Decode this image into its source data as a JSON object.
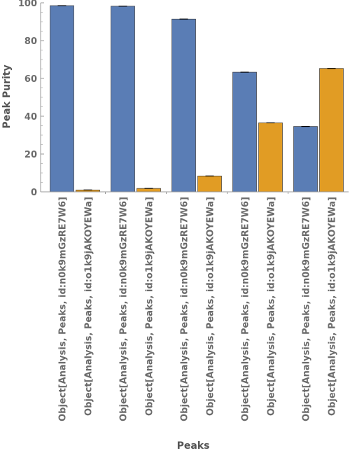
{
  "chart_data": {
    "type": "bar",
    "xlabel": "Peaks",
    "ylabel": "Peak Purity",
    "ylim": [
      0,
      100
    ],
    "yticks": [
      0,
      20,
      40,
      60,
      80,
      100
    ],
    "grid": false,
    "series_colors": [
      "#5a7db5",
      "#e19c24"
    ],
    "groups": [
      {
        "bars": [
          {
            "label": "Object[Analysis, Peaks, id:n0k9mGzRE7W6]",
            "value": 98.5
          },
          {
            "label": "Object[Analysis, Peaks, id:o1k9jAKOYEWa]",
            "value": 1.0
          }
        ]
      },
      {
        "bars": [
          {
            "label": "Object[Analysis, Peaks, id:n0k9mGzRE7W6]",
            "value": 98.2
          },
          {
            "label": "Object[Analysis, Peaks, id:o1k9jAKOYEWa]",
            "value": 1.8
          }
        ]
      },
      {
        "bars": [
          {
            "label": "Object[Analysis, Peaks, id:n0k9mGzRE7W6]",
            "value": 91.4
          },
          {
            "label": "Object[Analysis, Peaks, id:o1k9jAKOYEWa]",
            "value": 8.4
          }
        ]
      },
      {
        "bars": [
          {
            "label": "Object[Analysis, Peaks, id:n0k9mGzRE7W6]",
            "value": 63.3
          },
          {
            "label": "Object[Analysis, Peaks, id:o1k9jAKOYEWa]",
            "value": 36.5
          }
        ]
      },
      {
        "bars": [
          {
            "label": "Object[Analysis, Peaks, id:n0k9mGzRE7W6]",
            "value": 34.6
          },
          {
            "label": "Object[Analysis, Peaks, id:o1k9jAKOYEWa]",
            "value": 65.3
          }
        ]
      }
    ]
  }
}
